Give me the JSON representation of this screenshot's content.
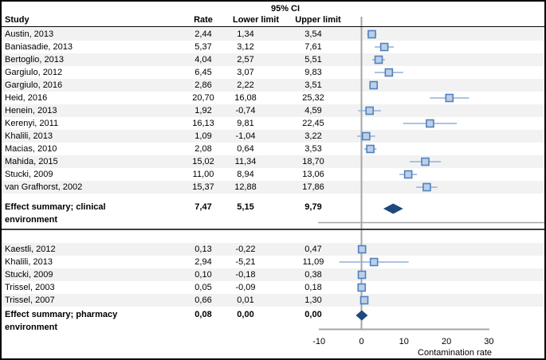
{
  "header": {
    "ci_header": "95% CI",
    "columns": {
      "study": "Study",
      "rate": "Rate",
      "lower": "Lower limit",
      "upper": "Upper limit"
    }
  },
  "axis": {
    "ticks": [
      -10,
      0,
      10,
      20,
      30
    ],
    "xlabel": "Contamination rate",
    "xmin": -10,
    "xmax": 30
  },
  "colors": {
    "stripe": "#f2f2f2",
    "marker_fill": "#bdcfe8",
    "marker_border": "#4f81bd",
    "ci_line": "#8eb1d9",
    "diamond": "#1f497d",
    "axis_line": "#a6a6a6",
    "separator": "#404040",
    "header_rule": "#000000"
  },
  "chart_data": {
    "type": "forest",
    "decimal_separator": ",",
    "xlabel": "Contamination rate",
    "xlim": [
      -10,
      30
    ],
    "groups": [
      {
        "studies": [
          {
            "label": "Austin, 2013",
            "rate": 2.44,
            "lower": 1.34,
            "upper": 3.54
          },
          {
            "label": "Baniasadie, 2013",
            "rate": 5.37,
            "lower": 3.12,
            "upper": 7.61
          },
          {
            "label": "Bertoglio, 2013",
            "rate": 4.04,
            "lower": 2.57,
            "upper": 5.51
          },
          {
            "label": "Gargiulo, 2012",
            "rate": 6.45,
            "lower": 3.07,
            "upper": 9.83
          },
          {
            "label": "Gargiulo, 2016",
            "rate": 2.86,
            "lower": 2.22,
            "upper": 3.51
          },
          {
            "label": "Heid, 2016",
            "rate": 20.7,
            "lower": 16.08,
            "upper": 25.32
          },
          {
            "label": "Henein, 2013",
            "rate": 1.92,
            "lower": -0.74,
            "upper": 4.59
          },
          {
            "label": "Kerenyi, 2011",
            "rate": 16.13,
            "lower": 9.81,
            "upper": 22.45
          },
          {
            "label": "Khalili, 2013",
            "rate": 1.09,
            "lower": -1.04,
            "upper": 3.22
          },
          {
            "label": "Macias, 2010",
            "rate": 2.08,
            "lower": 0.64,
            "upper": 3.53
          },
          {
            "label": "Mahida, 2015",
            "rate": 15.02,
            "lower": 11.34,
            "upper": 18.7
          },
          {
            "label": "Stucki, 2009",
            "rate": 11.0,
            "lower": 8.94,
            "upper": 13.06
          },
          {
            "label": "van Grafhorst, 2002",
            "rate": 15.37,
            "lower": 12.88,
            "upper": 17.86
          }
        ],
        "summary": {
          "label_line1": "Effect summary; clinical",
          "label_line2": "environment",
          "rate": 7.47,
          "lower": 5.15,
          "upper": 9.79
        }
      },
      {
        "studies": [
          {
            "label": "Kaestli, 2012",
            "rate": 0.13,
            "lower": -0.22,
            "upper": 0.47
          },
          {
            "label": "Khalili, 2013",
            "rate": 2.94,
            "lower": -5.21,
            "upper": 11.09
          },
          {
            "label": "Stucki, 2009",
            "rate": 0.1,
            "lower": -0.18,
            "upper": 0.38
          },
          {
            "label": "Trissel, 2003",
            "rate": 0.05,
            "lower": -0.09,
            "upper": 0.18
          },
          {
            "label": "Trissel, 2007",
            "rate": 0.66,
            "lower": 0.01,
            "upper": 1.3
          }
        ],
        "summary": {
          "label_line1": "Effect summary; pharmacy",
          "label_line2": "environment",
          "rate": 0.08,
          "lower": 0.0,
          "upper": 0.0
        }
      }
    ]
  }
}
